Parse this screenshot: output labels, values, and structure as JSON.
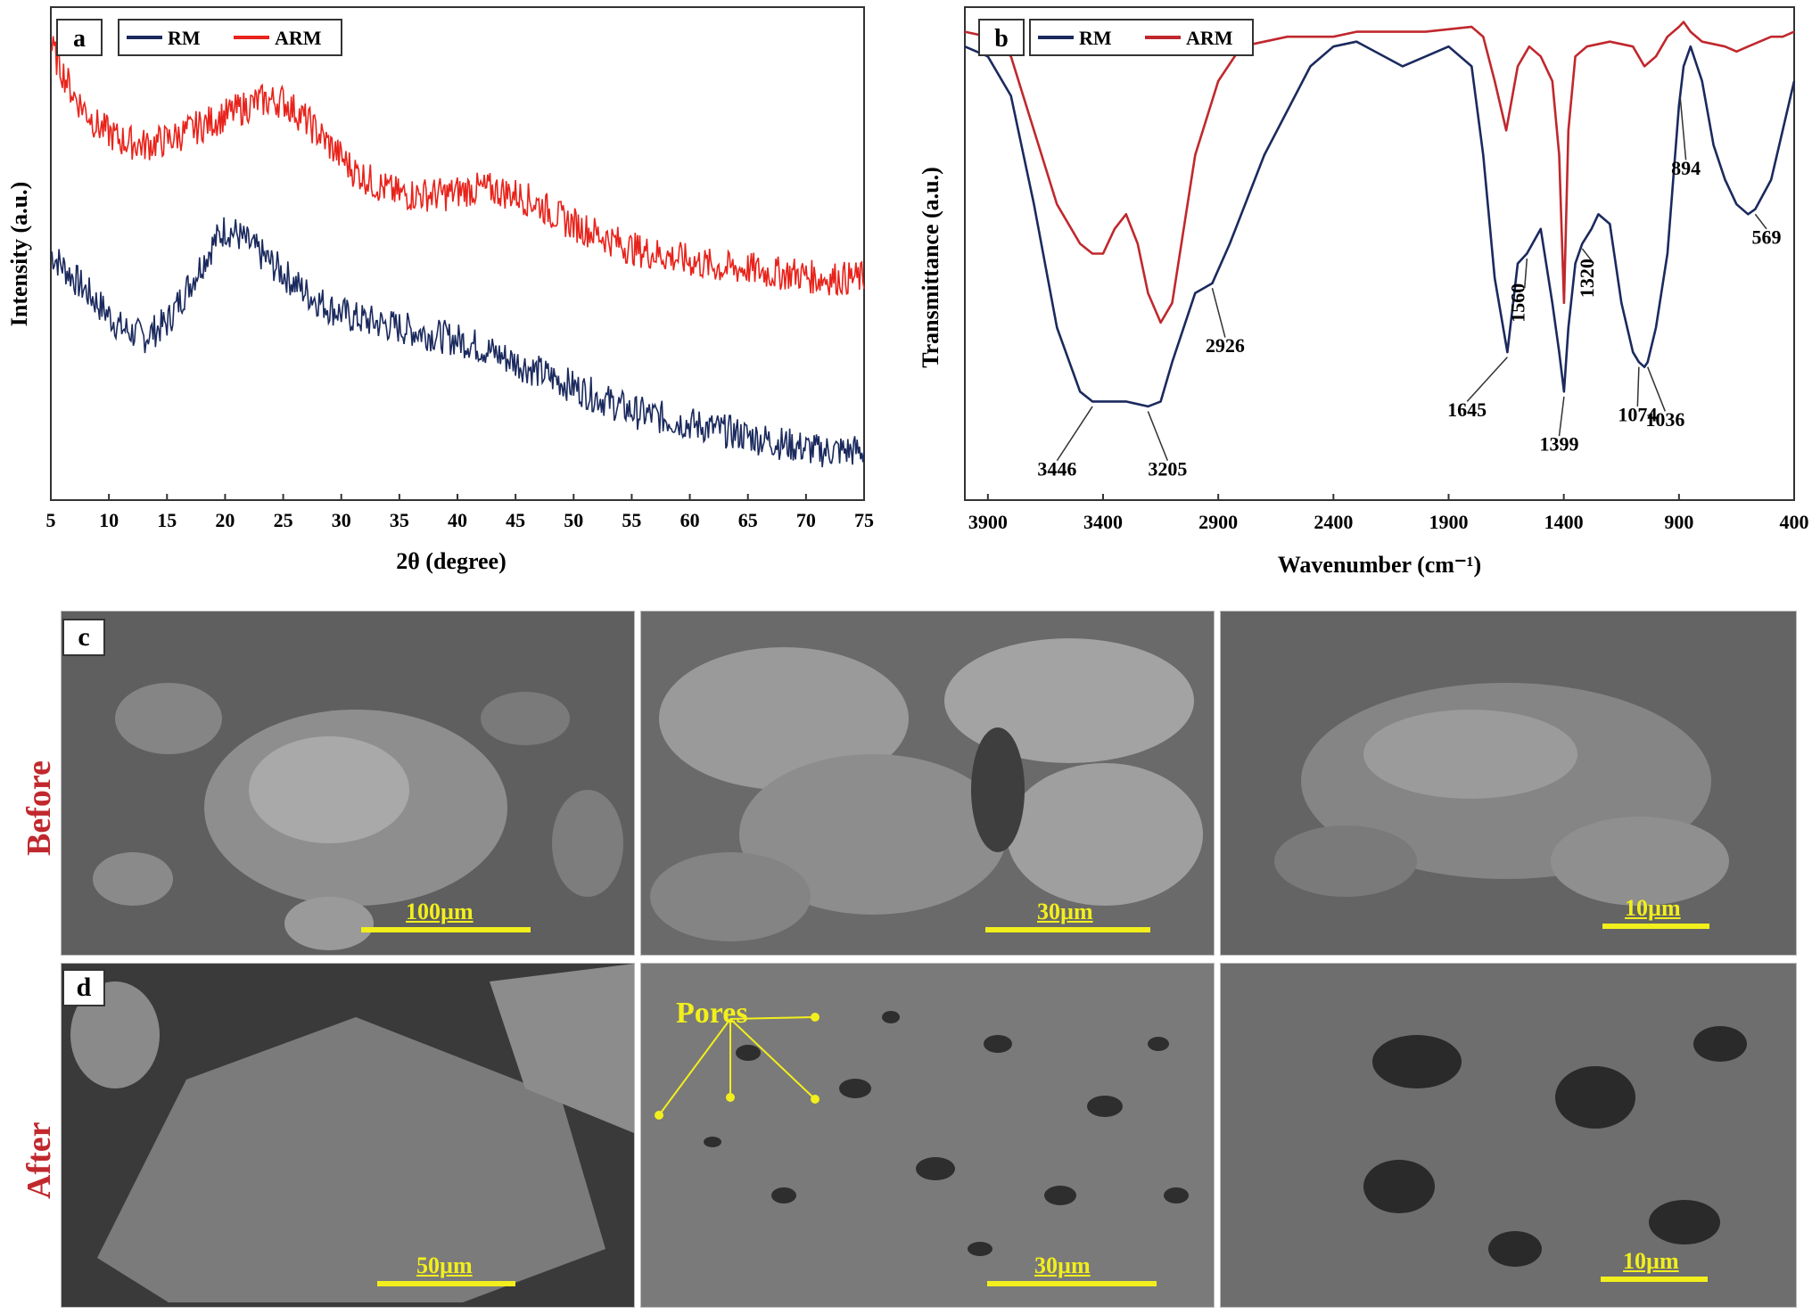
{
  "chart_data": [
    {
      "panel": "a",
      "type": "line",
      "xlabel": "2θ (degree)",
      "ylabel": "Intensity (a.u.)",
      "xlim": [
        5,
        75
      ],
      "xticks": [
        5,
        10,
        15,
        20,
        25,
        30,
        35,
        40,
        45,
        50,
        55,
        60,
        65,
        70,
        75
      ],
      "legend": "top-left",
      "series": [
        {
          "name": "RM",
          "color": "#1b2a5e",
          "x": [
            5,
            7,
            9,
            11,
            13,
            15,
            17,
            19,
            20,
            21,
            23,
            25,
            27,
            29,
            31,
            33,
            35,
            37,
            39,
            41,
            43,
            45,
            47,
            49,
            51,
            53,
            55,
            57,
            59,
            61,
            63,
            65,
            67,
            69,
            71,
            73,
            75
          ],
          "y": [
            0.5,
            0.45,
            0.4,
            0.35,
            0.33,
            0.36,
            0.44,
            0.52,
            0.55,
            0.54,
            0.5,
            0.46,
            0.42,
            0.39,
            0.37,
            0.36,
            0.35,
            0.34,
            0.33,
            0.32,
            0.3,
            0.28,
            0.26,
            0.24,
            0.22,
            0.2,
            0.18,
            0.17,
            0.16,
            0.15,
            0.14,
            0.13,
            0.12,
            0.11,
            0.1,
            0.1,
            0.1
          ]
        },
        {
          "name": "ARM",
          "color": "#e8231b",
          "x": [
            5,
            7,
            9,
            11,
            13,
            15,
            17,
            19,
            21,
            23,
            25,
            27,
            29,
            31,
            33,
            35,
            37,
            39,
            41,
            43,
            45,
            47,
            49,
            51,
            53,
            55,
            57,
            59,
            61,
            63,
            65,
            67,
            69,
            71,
            73,
            75
          ],
          "y": [
            0.92,
            0.82,
            0.76,
            0.73,
            0.72,
            0.73,
            0.75,
            0.77,
            0.79,
            0.81,
            0.81,
            0.77,
            0.72,
            0.67,
            0.64,
            0.62,
            0.62,
            0.62,
            0.63,
            0.63,
            0.62,
            0.6,
            0.57,
            0.55,
            0.53,
            0.51,
            0.5,
            0.49,
            0.48,
            0.47,
            0.47,
            0.46,
            0.46,
            0.45,
            0.45,
            0.45
          ]
        }
      ]
    },
    {
      "panel": "b",
      "type": "line",
      "xlabel": "Wavenumber (cm⁻¹)",
      "ylabel": "Transmittance (a.u.)",
      "xlim": [
        4000,
        400
      ],
      "xticks": [
        3900,
        3400,
        2900,
        2400,
        1900,
        1400,
        900,
        400
      ],
      "legend": "top-left",
      "series": [
        {
          "name": "RM",
          "color": "#1b2a5e",
          "x": [
            4000,
            3900,
            3800,
            3700,
            3600,
            3500,
            3446,
            3350,
            3300,
            3205,
            3150,
            3100,
            3000,
            2926,
            2850,
            2700,
            2500,
            2400,
            2300,
            2100,
            2000,
            1900,
            1800,
            1750,
            1700,
            1645,
            1600,
            1560,
            1500,
            1450,
            1420,
            1399,
            1380,
            1350,
            1320,
            1280,
            1250,
            1200,
            1150,
            1100,
            1074,
            1050,
            1036,
            1000,
            950,
            900,
            880,
            850,
            800,
            750,
            700,
            650,
            600,
            569,
            500,
            450,
            400
          ],
          "y": [
            0.92,
            0.9,
            0.82,
            0.6,
            0.35,
            0.22,
            0.2,
            0.2,
            0.2,
            0.19,
            0.2,
            0.28,
            0.42,
            0.44,
            0.52,
            0.7,
            0.88,
            0.92,
            0.93,
            0.88,
            0.9,
            0.92,
            0.88,
            0.7,
            0.45,
            0.3,
            0.48,
            0.5,
            0.55,
            0.4,
            0.3,
            0.22,
            0.35,
            0.48,
            0.52,
            0.55,
            0.58,
            0.56,
            0.4,
            0.3,
            0.28,
            0.27,
            0.28,
            0.35,
            0.5,
            0.8,
            0.88,
            0.92,
            0.85,
            0.72,
            0.65,
            0.6,
            0.58,
            0.59,
            0.65,
            0.75,
            0.85
          ]
        },
        {
          "name": "ARM",
          "color": "#c0282d",
          "x": [
            4000,
            3900,
            3800,
            3700,
            3600,
            3500,
            3446,
            3400,
            3350,
            3300,
            3250,
            3205,
            3150,
            3100,
            3000,
            2900,
            2800,
            2600,
            2400,
            2300,
            2000,
            1800,
            1750,
            1700,
            1650,
            1600,
            1550,
            1500,
            1450,
            1420,
            1399,
            1380,
            1350,
            1300,
            1200,
            1100,
            1050,
            1000,
            950,
            900,
            880,
            850,
            800,
            700,
            650,
            600,
            500,
            450,
            400
          ],
          "y": [
            0.95,
            0.94,
            0.9,
            0.75,
            0.6,
            0.52,
            0.5,
            0.5,
            0.55,
            0.58,
            0.52,
            0.42,
            0.36,
            0.4,
            0.7,
            0.85,
            0.92,
            0.94,
            0.94,
            0.95,
            0.95,
            0.96,
            0.94,
            0.85,
            0.75,
            0.88,
            0.92,
            0.9,
            0.85,
            0.7,
            0.4,
            0.75,
            0.9,
            0.92,
            0.93,
            0.92,
            0.88,
            0.9,
            0.94,
            0.96,
            0.97,
            0.95,
            0.93,
            0.92,
            0.91,
            0.92,
            0.94,
            0.94,
            0.95
          ]
        }
      ],
      "annotations": [
        "3446",
        "3205",
        "2926",
        "1645",
        "1560",
        "1399",
        "1320",
        "1074",
        "1036",
        "894",
        "569"
      ]
    }
  ],
  "sem": {
    "panel_c": "c",
    "panel_d": "d",
    "row_before": "Before",
    "row_after": "After",
    "pores_label": "Pores",
    "scale_c1": "100µm",
    "scale_c2": "30µm",
    "scale_c3": "10µm",
    "scale_d1": "50µm",
    "scale_d2": "30µm",
    "scale_d3": "10µm"
  },
  "colors": {
    "scale_yellow": "#f2ef1c",
    "row_label_red": "#c0282d",
    "rm_navy": "#1b2a5e",
    "arm_red": "#e8231b"
  }
}
